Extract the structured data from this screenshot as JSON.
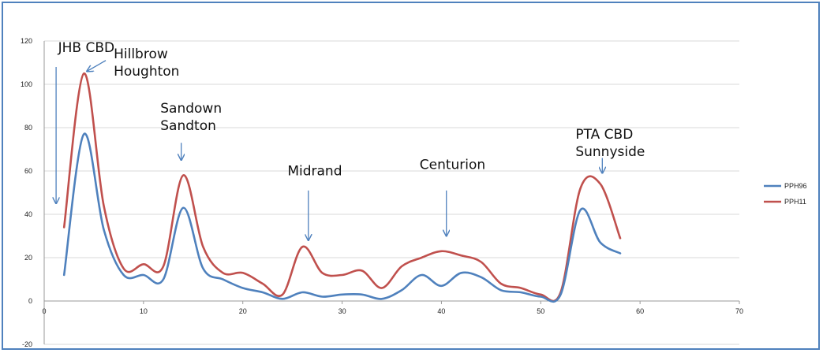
{
  "chart_data": {
    "type": "line",
    "title": "",
    "xlabel": "",
    "ylabel": "",
    "xlim": [
      0,
      70
    ],
    "ylim": [
      -20,
      120
    ],
    "xticks": [
      0,
      10,
      20,
      30,
      40,
      50,
      60,
      70
    ],
    "yticks": [
      -20,
      0,
      20,
      40,
      60,
      80,
      100,
      120
    ],
    "grid": "horizontal",
    "legend_position": "right",
    "x": [
      2,
      4,
      6,
      8,
      10,
      12,
      14,
      16,
      18,
      20,
      22,
      24,
      26,
      28,
      30,
      32,
      34,
      36,
      38,
      40,
      42,
      44,
      46,
      48,
      50,
      52,
      54,
      56,
      58
    ],
    "series": [
      {
        "name": "PPH96",
        "color": "#4f81bd",
        "values": [
          12,
          77,
          33,
          12,
          12,
          10,
          43,
          15,
          10,
          6,
          4,
          1,
          4,
          2,
          3,
          3,
          1,
          5,
          12,
          7,
          13,
          11,
          5,
          4,
          2,
          3,
          42,
          27,
          22
        ]
      },
      {
        "name": "PPH11",
        "color": "#c0504d",
        "values": [
          34,
          105,
          44,
          15,
          17,
          16,
          58,
          25,
          13,
          13,
          8,
          3,
          25,
          13,
          12,
          14,
          6,
          16,
          20,
          23,
          21,
          18,
          8,
          6,
          3,
          4,
          52,
          54,
          29
        ]
      }
    ],
    "annotations": [
      {
        "lines": [
          "JHB CBD"
        ],
        "text_x": 1.4,
        "text_y": 115,
        "arrow_from": [
          1.2,
          108
        ],
        "arrow_to": [
          1.2,
          45
        ]
      },
      {
        "lines": [
          "Hillbrow",
          "Houghton"
        ],
        "text_x": 7,
        "text_y": 112,
        "arrow_from": [
          6.2,
          111
        ],
        "arrow_to": [
          4.3,
          106
        ]
      },
      {
        "lines": [
          "Sandown",
          "Sandton"
        ],
        "text_x": 11.7,
        "text_y": 87,
        "arrow_from": [
          13.8,
          73
        ],
        "arrow_to": [
          13.8,
          65
        ]
      },
      {
        "lines": [
          "Midrand"
        ],
        "text_x": 24.5,
        "text_y": 58,
        "arrow_from": [
          26.6,
          51
        ],
        "arrow_to": [
          26.6,
          28
        ]
      },
      {
        "lines": [
          "Centurion"
        ],
        "text_x": 37.8,
        "text_y": 61,
        "arrow_from": [
          40.5,
          51
        ],
        "arrow_to": [
          40.5,
          30
        ]
      },
      {
        "lines": [
          "PTA CBD",
          "Sunnyside"
        ],
        "text_x": 53.5,
        "text_y": 75,
        "arrow_from": [
          56.2,
          66
        ],
        "arrow_to": [
          56.2,
          59
        ]
      }
    ]
  }
}
